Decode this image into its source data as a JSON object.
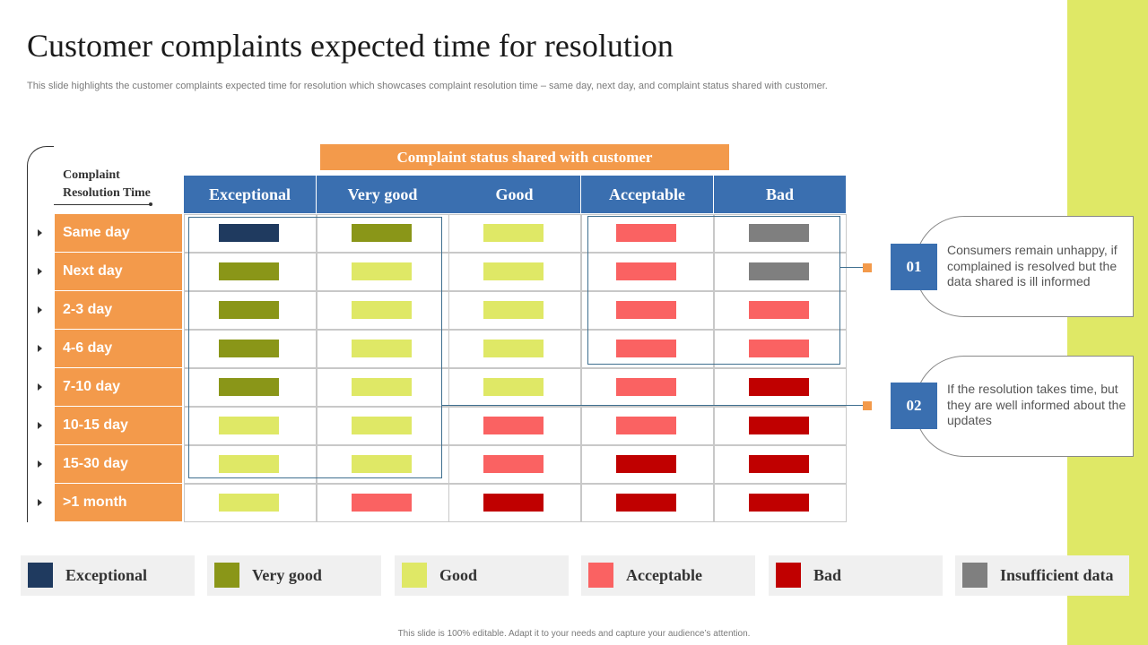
{
  "title": "Customer complaints expected time for resolution",
  "subtitle": "This slide highlights the customer complaints expected time for resolution which showcases complaint resolution time – same day, next day,     and complaint status shared with customer.",
  "row_header_label": "Complaint Resolution Time",
  "banner": "Complaint status shared with customer",
  "columns": [
    "Exceptional",
    "Very good",
    "Good",
    "Acceptable",
    "Bad"
  ],
  "rows": [
    "Same day",
    "Next day",
    "2-3 day",
    "4-6 day",
    "7-10 day",
    "10-15 day",
    "15-30 day",
    ">1 month"
  ],
  "statuses": {
    "exceptional": {
      "label": "Exceptional",
      "color": "#1f3a5f"
    },
    "very_good": {
      "label": "Very good",
      "color": "#8a9618"
    },
    "good": {
      "label": "Good",
      "color": "#dfe866"
    },
    "acceptable": {
      "label": "Acceptable",
      "color": "#fa6262"
    },
    "bad": {
      "label": "Bad",
      "color": "#c00000"
    },
    "insufficient": {
      "label": "Insufficient data",
      "color": "#7f7f7f"
    }
  },
  "matrix": [
    [
      "exceptional",
      "very_good",
      "good",
      "acceptable",
      "insufficient"
    ],
    [
      "very_good",
      "good",
      "good",
      "acceptable",
      "insufficient"
    ],
    [
      "very_good",
      "good",
      "good",
      "acceptable",
      "acceptable"
    ],
    [
      "very_good",
      "good",
      "good",
      "acceptable",
      "acceptable"
    ],
    [
      "very_good",
      "good",
      "good",
      "acceptable",
      "bad"
    ],
    [
      "good",
      "good",
      "acceptable",
      "acceptable",
      "bad"
    ],
    [
      "good",
      "good",
      "acceptable",
      "bad",
      "bad"
    ],
    [
      "good",
      "acceptable",
      "bad",
      "bad",
      "bad"
    ]
  ],
  "legend": [
    "exceptional",
    "very_good",
    "good",
    "acceptable",
    "bad",
    "insufficient"
  ],
  "callouts": [
    {
      "number": "01",
      "text": "Consumers remain unhappy, if complained is resolved but the data shared is ill informed"
    },
    {
      "number": "02",
      "text": "If the resolution takes time, but they are well informed about the updates"
    }
  ],
  "footer": "This slide is 100% editable. Adapt it to your needs and capture your audience’s attention."
}
